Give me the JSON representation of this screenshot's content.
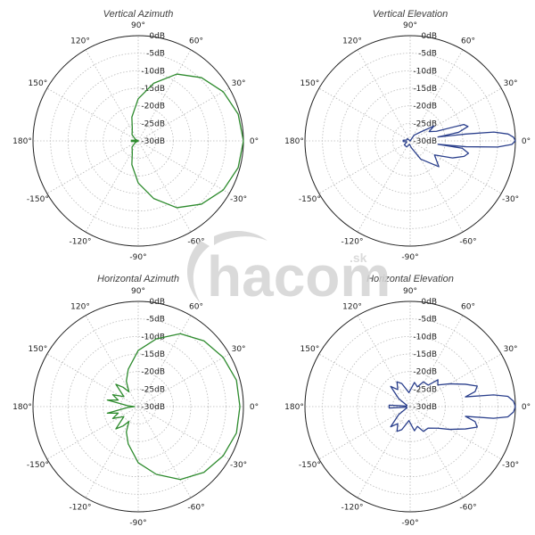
{
  "watermark": {
    "brand": "hacom",
    "suffix": ".sk",
    "color": "#d4d4d4"
  },
  "chart_data": [
    {
      "type": "polar-line",
      "title": "Vertical Azimuth",
      "color": "#2e8b2e",
      "ring_labels": [
        "0dB",
        "-5dB",
        "-10dB",
        "-15dB",
        "-20dB",
        "-25dB",
        "-30dB"
      ],
      "angle_labels": [
        "90°",
        "60°",
        "30°",
        "0°",
        "-30°",
        "-60°",
        "-90°",
        "-120°",
        "-150°",
        "180°",
        "150°",
        "120°"
      ],
      "r_range_db": [
        -30,
        0
      ],
      "series": [
        {
          "points": [
            [
              0,
              0
            ],
            [
              15,
              -0.5
            ],
            [
              30,
              -2
            ],
            [
              45,
              -4.5
            ],
            [
              60,
              -8
            ],
            [
              75,
              -13
            ],
            [
              90,
              -18
            ],
            [
              105,
              -23
            ],
            [
              115,
              -26
            ],
            [
              125,
              -27
            ],
            [
              135,
              -27.5
            ],
            [
              150,
              -29
            ],
            [
              165,
              -30
            ],
            [
              170,
              -29
            ],
            [
              175,
              -28
            ],
            [
              180,
              -29
            ],
            [
              185,
              -28
            ],
            [
              190,
              -29
            ],
            [
              195,
              -30
            ],
            [
              210,
              -29
            ],
            [
              225,
              -27.5
            ],
            [
              235,
              -27
            ],
            [
              245,
              -26
            ],
            [
              255,
              -23
            ],
            [
              270,
              -18
            ],
            [
              285,
              -13
            ],
            [
              300,
              -8
            ],
            [
              315,
              -4.5
            ],
            [
              330,
              -2
            ],
            [
              345,
              -0.5
            ],
            [
              360,
              0
            ]
          ]
        }
      ]
    },
    {
      "type": "polar-line",
      "title": "Vertical Elevation",
      "color": "#2a3f8c",
      "ring_labels": [
        "0dB",
        "-5dB",
        "-10dB",
        "-15dB",
        "-20dB",
        "-25dB",
        "-30dB"
      ],
      "angle_labels": [
        "90°",
        "60°",
        "30°",
        "0°",
        "-30°",
        "-60°",
        "-90°",
        "-120°",
        "-150°",
        "180°",
        "150°",
        "120°"
      ],
      "r_range_db": [
        -30,
        0
      ],
      "series": [
        {
          "points": [
            [
              0,
              0
            ],
            [
              2,
              -0.5
            ],
            [
              4,
              -2
            ],
            [
              6,
              -6
            ],
            [
              7,
              -14
            ],
            [
              8,
              -22
            ],
            [
              10,
              -16
            ],
            [
              14,
              -13
            ],
            [
              17,
              -14
            ],
            [
              20,
              -22
            ],
            [
              26,
              -24
            ],
            [
              32,
              -22
            ],
            [
              40,
              -26
            ],
            [
              55,
              -28
            ],
            [
              75,
              -30
            ],
            [
              105,
              -30
            ],
            [
              140,
              -29
            ],
            [
              165,
              -29
            ],
            [
              175,
              -28
            ],
            [
              180,
              -28
            ],
            [
              185,
              -28
            ],
            [
              195,
              -29
            ],
            [
              215,
              -28
            ],
            [
              240,
              -28
            ],
            [
              260,
              -29
            ],
            [
              280,
              -28
            ],
            [
              300,
              -24
            ],
            [
              318,
              -19
            ],
            [
              330,
              -22
            ],
            [
              338,
              -17
            ],
            [
              344,
              -14
            ],
            [
              348,
              -13
            ],
            [
              352,
              -15
            ],
            [
              353,
              -22
            ],
            [
              354,
              -14
            ],
            [
              356,
              -5
            ],
            [
              358,
              -1
            ],
            [
              360,
              0
            ]
          ]
        }
      ]
    },
    {
      "type": "polar-line",
      "title": "Horizontal Azimuth",
      "color": "#2e8b2e",
      "ring_labels": [
        "0dB",
        "-5dB",
        "-10dB",
        "-15dB",
        "-20dB",
        "-25dB",
        "-30dB"
      ],
      "angle_labels": [
        "90°",
        "60°",
        "30°",
        "0°",
        "-30°",
        "-60°",
        "-90°",
        "-120°",
        "-150°",
        "180°",
        "150°",
        "120°"
      ],
      "r_range_db": [
        -30,
        0
      ],
      "series": [
        {
          "points": [
            [
              0,
              -1
            ],
            [
              15,
              -1
            ],
            [
              30,
              -2
            ],
            [
              45,
              -3.5
            ],
            [
              60,
              -6
            ],
            [
              75,
              -10
            ],
            [
              90,
              -14
            ],
            [
              105,
              -19
            ],
            [
              115,
              -22
            ],
            [
              122,
              -25
            ],
            [
              128,
              -23
            ],
            [
              135,
              -21
            ],
            [
              145,
              -25
            ],
            [
              155,
              -22
            ],
            [
              162,
              -24
            ],
            [
              168,
              -21
            ],
            [
              175,
              -27
            ],
            [
              180,
              -29
            ],
            [
              185,
              -27
            ],
            [
              192,
              -21
            ],
            [
              198,
              -24
            ],
            [
              205,
              -22
            ],
            [
              215,
              -25
            ],
            [
              225,
              -21
            ],
            [
              232,
              -23
            ],
            [
              238,
              -25
            ],
            [
              245,
              -22
            ],
            [
              255,
              -19
            ],
            [
              270,
              -14
            ],
            [
              285,
              -10
            ],
            [
              300,
              -6
            ],
            [
              315,
              -3.5
            ],
            [
              330,
              -2
            ],
            [
              345,
              -1
            ],
            [
              360,
              -1
            ]
          ]
        }
      ]
    },
    {
      "type": "polar-line",
      "title": "Horizontal Elevation",
      "color": "#2a3f8c",
      "ring_labels": [
        "0dB",
        "-5dB",
        "-10dB",
        "-15dB",
        "-20dB",
        "-25dB",
        "-30dB"
      ],
      "angle_labels": [
        "90°",
        "60°",
        "30°",
        "0°",
        "-30°",
        "-60°",
        "-90°",
        "-120°",
        "-150°",
        "180°",
        "150°",
        "120°"
      ],
      "r_range_db": [
        -30,
        0
      ],
      "series": [
        {
          "points": [
            [
              0,
              0
            ],
            [
              3,
              -0.5
            ],
            [
              6,
              -2
            ],
            [
              8,
              -6
            ],
            [
              10,
              -14
            ],
            [
              13,
              -11
            ],
            [
              17,
              -10
            ],
            [
              22,
              -13
            ],
            [
              30,
              -17
            ],
            [
              38,
              -20
            ],
            [
              44,
              -19
            ],
            [
              50,
              -22
            ],
            [
              62,
              -22
            ],
            [
              70,
              -24
            ],
            [
              80,
              -23
            ],
            [
              95,
              -26
            ],
            [
              110,
              -23
            ],
            [
              118,
              -22
            ],
            [
              126,
              -24
            ],
            [
              134,
              -22
            ],
            [
              145,
              -26
            ],
            [
              160,
              -29
            ],
            [
              172,
              -29
            ],
            [
              176,
              -24
            ],
            [
              180,
              -24
            ],
            [
              184,
              -24
            ],
            [
              188,
              -29
            ],
            [
              200,
              -29
            ],
            [
              215,
              -26
            ],
            [
              226,
              -22
            ],
            [
              234,
              -24
            ],
            [
              242,
              -22
            ],
            [
              250,
              -23
            ],
            [
              265,
              -26
            ],
            [
              280,
              -23
            ],
            [
              290,
              -24
            ],
            [
              298,
              -22
            ],
            [
              310,
              -22
            ],
            [
              322,
              -20
            ],
            [
              330,
              -17
            ],
            [
              338,
              -13
            ],
            [
              343,
              -10
            ],
            [
              347,
              -11
            ],
            [
              350,
              -14
            ],
            [
              352,
              -6
            ],
            [
              354,
              -2
            ],
            [
              357,
              -0.5
            ],
            [
              360,
              0
            ]
          ]
        }
      ]
    }
  ]
}
